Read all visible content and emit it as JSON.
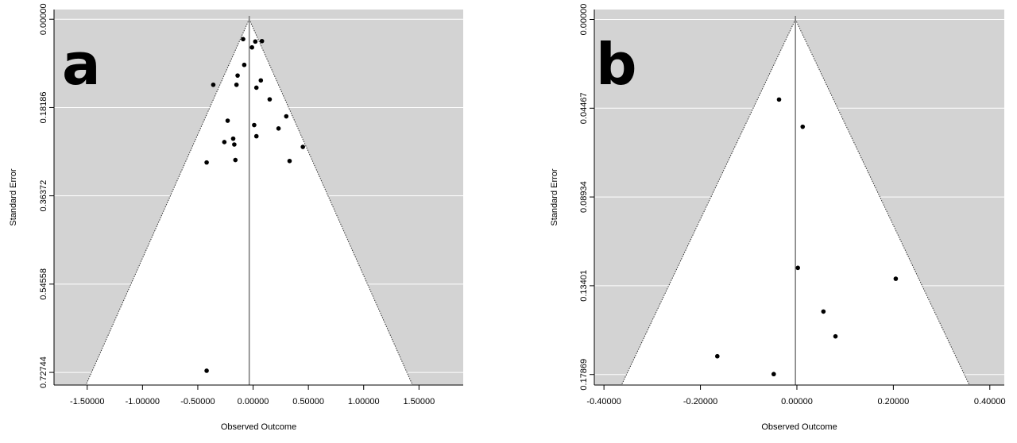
{
  "chart_data": [
    {
      "type": "scatter",
      "subtype": "funnel",
      "panel_label": "a",
      "xlabel": "Observed Outcome",
      "ylabel": "Standard Error",
      "xlim": [
        -1.8,
        1.9
      ],
      "ylim": [
        0.7535,
        -0.02
      ],
      "y_reversed": true,
      "x_ticks": [
        -1.5,
        -1.0,
        -0.5,
        0.0,
        0.5,
        1.0,
        1.5
      ],
      "x_tick_labels": [
        "-1.50000",
        "-1.00000",
        "-0.50000",
        "0.00000",
        "0.50000",
        "1.00000",
        "1.50000"
      ],
      "y_ticks": [
        0.0,
        0.18186,
        0.36372,
        0.54558,
        0.72744
      ],
      "y_tick_labels": [
        "0.00000",
        "0.18186",
        "0.36372",
        "0.54558",
        "0.72744"
      ],
      "summary_estimate": -0.035,
      "funnel_max_se": 0.7535,
      "background_color": "#d3d3d3",
      "grid": true,
      "points": [
        {
          "x": -0.09,
          "y": 0.041
        },
        {
          "x": 0.02,
          "y": 0.046
        },
        {
          "x": 0.08,
          "y": 0.045
        },
        {
          "x": -0.01,
          "y": 0.058
        },
        {
          "x": -0.08,
          "y": 0.094
        },
        {
          "x": -0.14,
          "y": 0.116
        },
        {
          "x": 0.07,
          "y": 0.126
        },
        {
          "x": -0.36,
          "y": 0.135
        },
        {
          "x": -0.15,
          "y": 0.135
        },
        {
          "x": 0.03,
          "y": 0.141
        },
        {
          "x": 0.15,
          "y": 0.165
        },
        {
          "x": 0.3,
          "y": 0.2
        },
        {
          "x": -0.23,
          "y": 0.209
        },
        {
          "x": 0.01,
          "y": 0.218
        },
        {
          "x": 0.23,
          "y": 0.225
        },
        {
          "x": 0.03,
          "y": 0.241
        },
        {
          "x": -0.18,
          "y": 0.246
        },
        {
          "x": -0.26,
          "y": 0.253
        },
        {
          "x": -0.17,
          "y": 0.258
        },
        {
          "x": 0.45,
          "y": 0.263
        },
        {
          "x": -0.16,
          "y": 0.29
        },
        {
          "x": -0.42,
          "y": 0.295
        },
        {
          "x": 0.33,
          "y": 0.292
        },
        {
          "x": -0.42,
          "y": 0.724
        }
      ]
    },
    {
      "type": "scatter",
      "subtype": "funnel",
      "panel_label": "b",
      "xlabel": "Observed Outcome",
      "ylabel": "Standard Error",
      "xlim": [
        -0.42,
        0.43
      ],
      "ylim": [
        0.184,
        -0.005
      ],
      "y_reversed": true,
      "x_ticks": [
        -0.4,
        -0.2,
        0.0,
        0.2,
        0.4
      ],
      "x_tick_labels": [
        "-0.40000",
        "-0.20000",
        "0.00000",
        "0.20000",
        "0.40000"
      ],
      "y_ticks": [
        0.0,
        0.04467,
        0.08934,
        0.13401,
        0.17869
      ],
      "y_tick_labels": [
        "0.00000",
        "0.04467",
        "0.08934",
        "0.13401",
        "0.17869"
      ],
      "summary_estimate": -0.003,
      "funnel_max_se": 0.184,
      "background_color": "#d3d3d3",
      "grid": true,
      "points": [
        {
          "x": -0.037,
          "y": 0.0403
        },
        {
          "x": 0.012,
          "y": 0.054
        },
        {
          "x": 0.002,
          "y": 0.125
        },
        {
          "x": 0.205,
          "y": 0.1305
        },
        {
          "x": 0.055,
          "y": 0.147
        },
        {
          "x": 0.08,
          "y": 0.1595
        },
        {
          "x": -0.165,
          "y": 0.1695
        },
        {
          "x": -0.048,
          "y": 0.1785
        }
      ]
    }
  ]
}
